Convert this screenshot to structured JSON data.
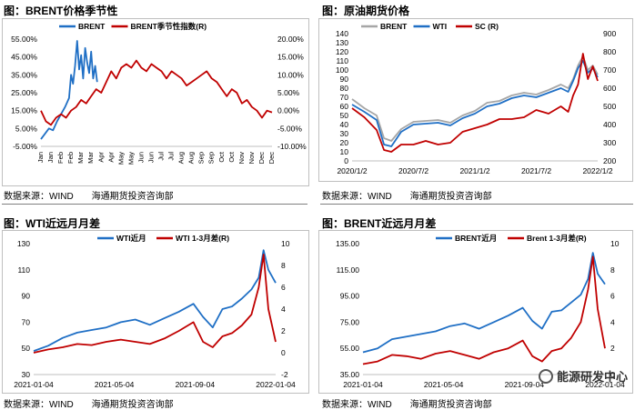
{
  "panels": [
    {
      "title": "图：BRENT价格季节性",
      "source": "数据来源：WIND　　海通期货投资咨询部",
      "chart_data": {
        "type": "line",
        "x_ticks": [
          "Jan",
          "Jan",
          "Feb",
          "Feb",
          "Mar",
          "Mar",
          "Apr",
          "Apr",
          "May",
          "May",
          "Jun",
          "Jun",
          "Jul",
          "Jul",
          "Aug",
          "Aug",
          "Sep",
          "Sep",
          "Oct",
          "Oct",
          "Nov",
          "Nov",
          "Dec",
          "Dec"
        ],
        "y_left": {
          "ticks": [
            "55.00%",
            "45.00%",
            "35.00%",
            "25.00%",
            "15.00%",
            "5.00%",
            "-5.00%"
          ],
          "min": -5,
          "max": 55
        },
        "y_right": {
          "ticks": [
            "20.00%",
            "15.00%",
            "10.00%",
            "5.00%",
            "0.00%",
            "-5.00%",
            "-10.00%"
          ],
          "min": -10,
          "max": 20
        },
        "series": [
          {
            "name": "BRENT",
            "axis": "left",
            "color": "#1f6fc5",
            "x": [
              0,
              0.4,
              0.8,
              1.2,
              1.6,
              2.0,
              2.4,
              2.8,
              3.0,
              3.2,
              3.4,
              3.6,
              3.8,
              4.0,
              4.2,
              4.4,
              4.6,
              4.8,
              5.0,
              5.2,
              5.4,
              5.6
            ],
            "y": [
              -1,
              2,
              5,
              4,
              9,
              13,
              17,
              22,
              35,
              30,
              40,
              54,
              38,
              46,
              33,
              50,
              42,
              36,
              48,
              33,
              40,
              31
            ]
          },
          {
            "name": "BRENT季节性指数(R)",
            "axis": "right",
            "color": "#c00000",
            "x": [
              0,
              0.5,
              1,
              1.5,
              2,
              2.5,
              3,
              3.5,
              4,
              4.5,
              5,
              5.5,
              6,
              6.5,
              7,
              7.5,
              8,
              8.5,
              9,
              9.5,
              10,
              10.5,
              11,
              11.5,
              12,
              12.5,
              13,
              13.5,
              14,
              14.5,
              15,
              15.5,
              16,
              16.5,
              17,
              17.5,
              18,
              18.5,
              19,
              19.5,
              20,
              20.5,
              21,
              21.5,
              22,
              22.5,
              23
            ],
            "y": [
              0,
              -3,
              -4,
              -2,
              -1,
              -2,
              0,
              1,
              3,
              2,
              4,
              6,
              5,
              8,
              11,
              9,
              12,
              13,
              12,
              14,
              12,
              11,
              13,
              12,
              11,
              9,
              11,
              10,
              9,
              7,
              8,
              9,
              10,
              11,
              9,
              8,
              6,
              4,
              6,
              5,
              2,
              3,
              1,
              0,
              -2,
              0,
              -0.5
            ]
          }
        ]
      }
    },
    {
      "title": "图：原油期货价格",
      "source": "数据来源：WIND　　海通期货投资咨询部",
      "chart_data": {
        "type": "line",
        "x_ticks": [
          "2020/1/2",
          "2020/7/2",
          "2021/1/2",
          "2021/7/2",
          "2022/1/2"
        ],
        "y_left": {
          "ticks": [
            "140",
            "130",
            "120",
            "110",
            "100",
            "90",
            "80",
            "70",
            "60",
            "50",
            "40",
            "30",
            "20",
            "10",
            "0"
          ],
          "min": 0,
          "max": 140
        },
        "y_right": {
          "ticks": [
            "900",
            "800",
            "700",
            "600",
            "500",
            "400",
            "300",
            "200"
          ],
          "min": 200,
          "max": 900
        },
        "series": [
          {
            "name": "BRENT",
            "axis": "left",
            "color": "#a6a6a6",
            "x": [
              0,
              0.05,
              0.1,
              0.13,
              0.16,
              0.2,
              0.25,
              0.3,
              0.35,
              0.4,
              0.45,
              0.5,
              0.55,
              0.6,
              0.65,
              0.7,
              0.75,
              0.8,
              0.85,
              0.88,
              0.9,
              0.92,
              0.94,
              0.96,
              0.98,
              1.0
            ],
            "y": [
              68,
              58,
              50,
              25,
              22,
              35,
              43,
              44,
              45,
              42,
              50,
              55,
              64,
              66,
              72,
              75,
              73,
              78,
              84,
              80,
              90,
              105,
              115,
              100,
              105,
              95
            ]
          },
          {
            "name": "WTI",
            "axis": "left",
            "color": "#1f6fc5",
            "x": [
              0,
              0.05,
              0.1,
              0.13,
              0.16,
              0.2,
              0.25,
              0.3,
              0.35,
              0.4,
              0.45,
              0.5,
              0.55,
              0.6,
              0.65,
              0.7,
              0.75,
              0.8,
              0.85,
              0.88,
              0.9,
              0.92,
              0.94,
              0.96,
              0.98,
              1.0
            ],
            "y": [
              62,
              54,
              45,
              18,
              16,
              32,
              40,
              41,
              42,
              39,
              47,
              52,
              60,
              63,
              69,
              72,
              70,
              75,
              80,
              76,
              88,
              102,
              110,
              97,
              102,
              92
            ]
          },
          {
            "name": "SC (R)",
            "axis": "right",
            "color": "#c00000",
            "x": [
              0,
              0.05,
              0.1,
              0.13,
              0.16,
              0.2,
              0.25,
              0.3,
              0.35,
              0.4,
              0.45,
              0.5,
              0.55,
              0.6,
              0.65,
              0.7,
              0.75,
              0.8,
              0.85,
              0.88,
              0.9,
              0.92,
              0.94,
              0.96,
              0.98,
              1.0
            ],
            "y": [
              490,
              440,
              370,
              260,
              250,
              290,
              290,
              310,
              290,
              300,
              360,
              380,
              400,
              430,
              430,
              440,
              480,
              460,
              500,
              470,
              560,
              620,
              790,
              650,
              720,
              640
            ]
          }
        ]
      }
    },
    {
      "title": "图：WTI近远月月差",
      "source": "数据来源：WIND　　海通期货投资咨询部",
      "chart_data": {
        "type": "line",
        "x_ticks": [
          "2021-01-04",
          "2021-05-04",
          "2021-09-04",
          "2022-01-04"
        ],
        "y_left": {
          "ticks": [
            "130",
            "110",
            "90",
            "70",
            "50",
            "30"
          ],
          "min": 30,
          "max": 130
        },
        "y_right": {
          "ticks": [
            "10",
            "8",
            "6",
            "4",
            "2",
            "0",
            "-2"
          ],
          "min": -2,
          "max": 10
        },
        "series": [
          {
            "name": "WTI近月",
            "axis": "left",
            "color": "#1f6fc5",
            "x": [
              0,
              0.06,
              0.12,
              0.18,
              0.24,
              0.3,
              0.36,
              0.42,
              0.48,
              0.54,
              0.6,
              0.66,
              0.7,
              0.74,
              0.78,
              0.82,
              0.86,
              0.9,
              0.93,
              0.95,
              0.97,
              1.0
            ],
            "y": [
              48,
              52,
              58,
              62,
              64,
              66,
              70,
              72,
              68,
              73,
              78,
              84,
              74,
              66,
              80,
              82,
              88,
              95,
              104,
              125,
              110,
              100
            ]
          },
          {
            "name": "WTI 1-3月差(R)",
            "axis": "right",
            "color": "#c00000",
            "x": [
              0,
              0.06,
              0.12,
              0.18,
              0.24,
              0.3,
              0.36,
              0.42,
              0.48,
              0.54,
              0.6,
              0.66,
              0.7,
              0.74,
              0.78,
              0.82,
              0.86,
              0.9,
              0.93,
              0.95,
              0.97,
              1.0
            ],
            "y": [
              0,
              0.3,
              0.5,
              0.8,
              0.7,
              1.0,
              1.2,
              1.0,
              0.8,
              1.3,
              2.0,
              2.8,
              1.0,
              0.5,
              1.5,
              1.8,
              2.5,
              3.5,
              6.0,
              9.0,
              4.0,
              1.0
            ]
          }
        ]
      }
    },
    {
      "title": "图：BRENT近远月月差",
      "source": "数据来源：WIND　　海通期货投资咨询部",
      "chart_data": {
        "type": "line",
        "x_ticks": [
          "2021-01-04",
          "2021-05-04",
          "2021-09-04",
          "2022-01-04"
        ],
        "y_left": {
          "ticks": [
            "135.00",
            "115.00",
            "95.00",
            "75.00",
            "55.00",
            "35.00"
          ],
          "min": 35,
          "max": 135
        },
        "y_right": {
          "ticks": [
            "10",
            "8",
            "6",
            "4",
            "2",
            "0"
          ],
          "min": 0,
          "max": 10
        },
        "series": [
          {
            "name": "BRENT近月",
            "axis": "left",
            "color": "#1f6fc5",
            "x": [
              0,
              0.06,
              0.12,
              0.18,
              0.24,
              0.3,
              0.36,
              0.42,
              0.48,
              0.54,
              0.6,
              0.66,
              0.7,
              0.74,
              0.78,
              0.82,
              0.86,
              0.9,
              0.93,
              0.95,
              0.97,
              1.0
            ],
            "y": [
              52,
              55,
              62,
              64,
              66,
              68,
              72,
              74,
              70,
              75,
              80,
              86,
              76,
              70,
              83,
              84,
              90,
              96,
              108,
              128,
              112,
              104
            ]
          },
          {
            "name": "Brent 1-3月差(R)",
            "axis": "right",
            "color": "#c00000",
            "x": [
              0,
              0.06,
              0.12,
              0.18,
              0.24,
              0.3,
              0.36,
              0.42,
              0.48,
              0.54,
              0.6,
              0.66,
              0.7,
              0.74,
              0.78,
              0.82,
              0.86,
              0.9,
              0.93,
              0.95,
              0.97,
              1.0
            ],
            "y": [
              0.8,
              1.0,
              1.5,
              1.4,
              1.2,
              1.6,
              1.8,
              1.5,
              1.2,
              1.7,
              2.0,
              2.6,
              1.4,
              1.0,
              1.8,
              2.0,
              2.8,
              4.0,
              6.5,
              9.0,
              5.0,
              2.0
            ]
          }
        ]
      }
    }
  ],
  "watermark": "能源研发中心"
}
